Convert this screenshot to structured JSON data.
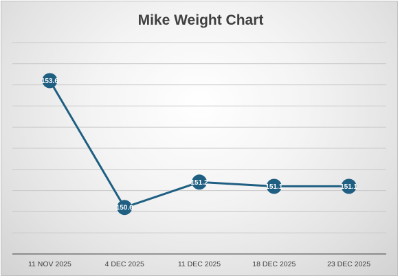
{
  "chart_data": {
    "type": "line",
    "title": "Mike Weight Chart",
    "xlabel": "",
    "ylabel": "",
    "categories": [
      "11 NOV 2025",
      "4 DEC 2025",
      "11 DEC 2025",
      "18 DEC 2025",
      "23 DEC 2025"
    ],
    "series": [
      {
        "values": [
          153.6,
          150.6,
          151.2,
          151.1,
          151.1
        ],
        "data_labels": [
          "153.6",
          "150.6",
          "151.2",
          "151.1",
          "151.1"
        ],
        "color": "#1f5f82"
      }
    ],
    "ylim": [
      149.5,
      154.5
    ],
    "grid": true,
    "legend": "none"
  }
}
